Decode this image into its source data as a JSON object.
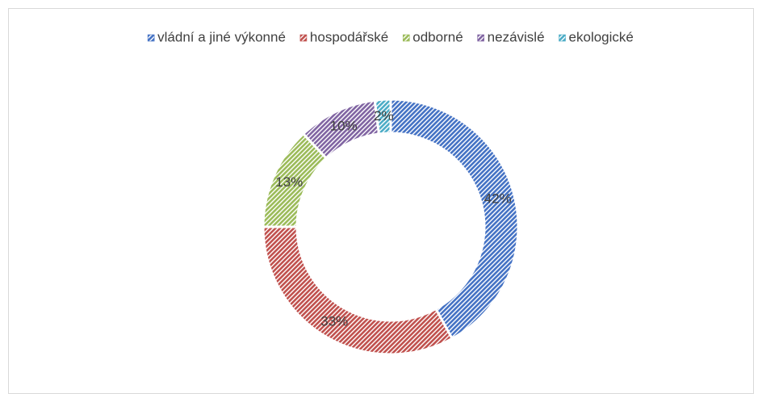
{
  "chart_data": {
    "type": "donut",
    "categories": [
      "vládní a jiné výkonné",
      "hospodářské",
      "odborné",
      "nezávislé",
      "ekologické"
    ],
    "values": [
      42,
      33,
      13,
      10,
      2
    ],
    "value_labels": [
      "42%",
      "33%",
      "13%",
      "10%",
      "2%"
    ],
    "colors": [
      "#4472c4",
      "#c0504d",
      "#9bbb59",
      "#8064a2",
      "#4bacc6"
    ],
    "legend": "top"
  }
}
